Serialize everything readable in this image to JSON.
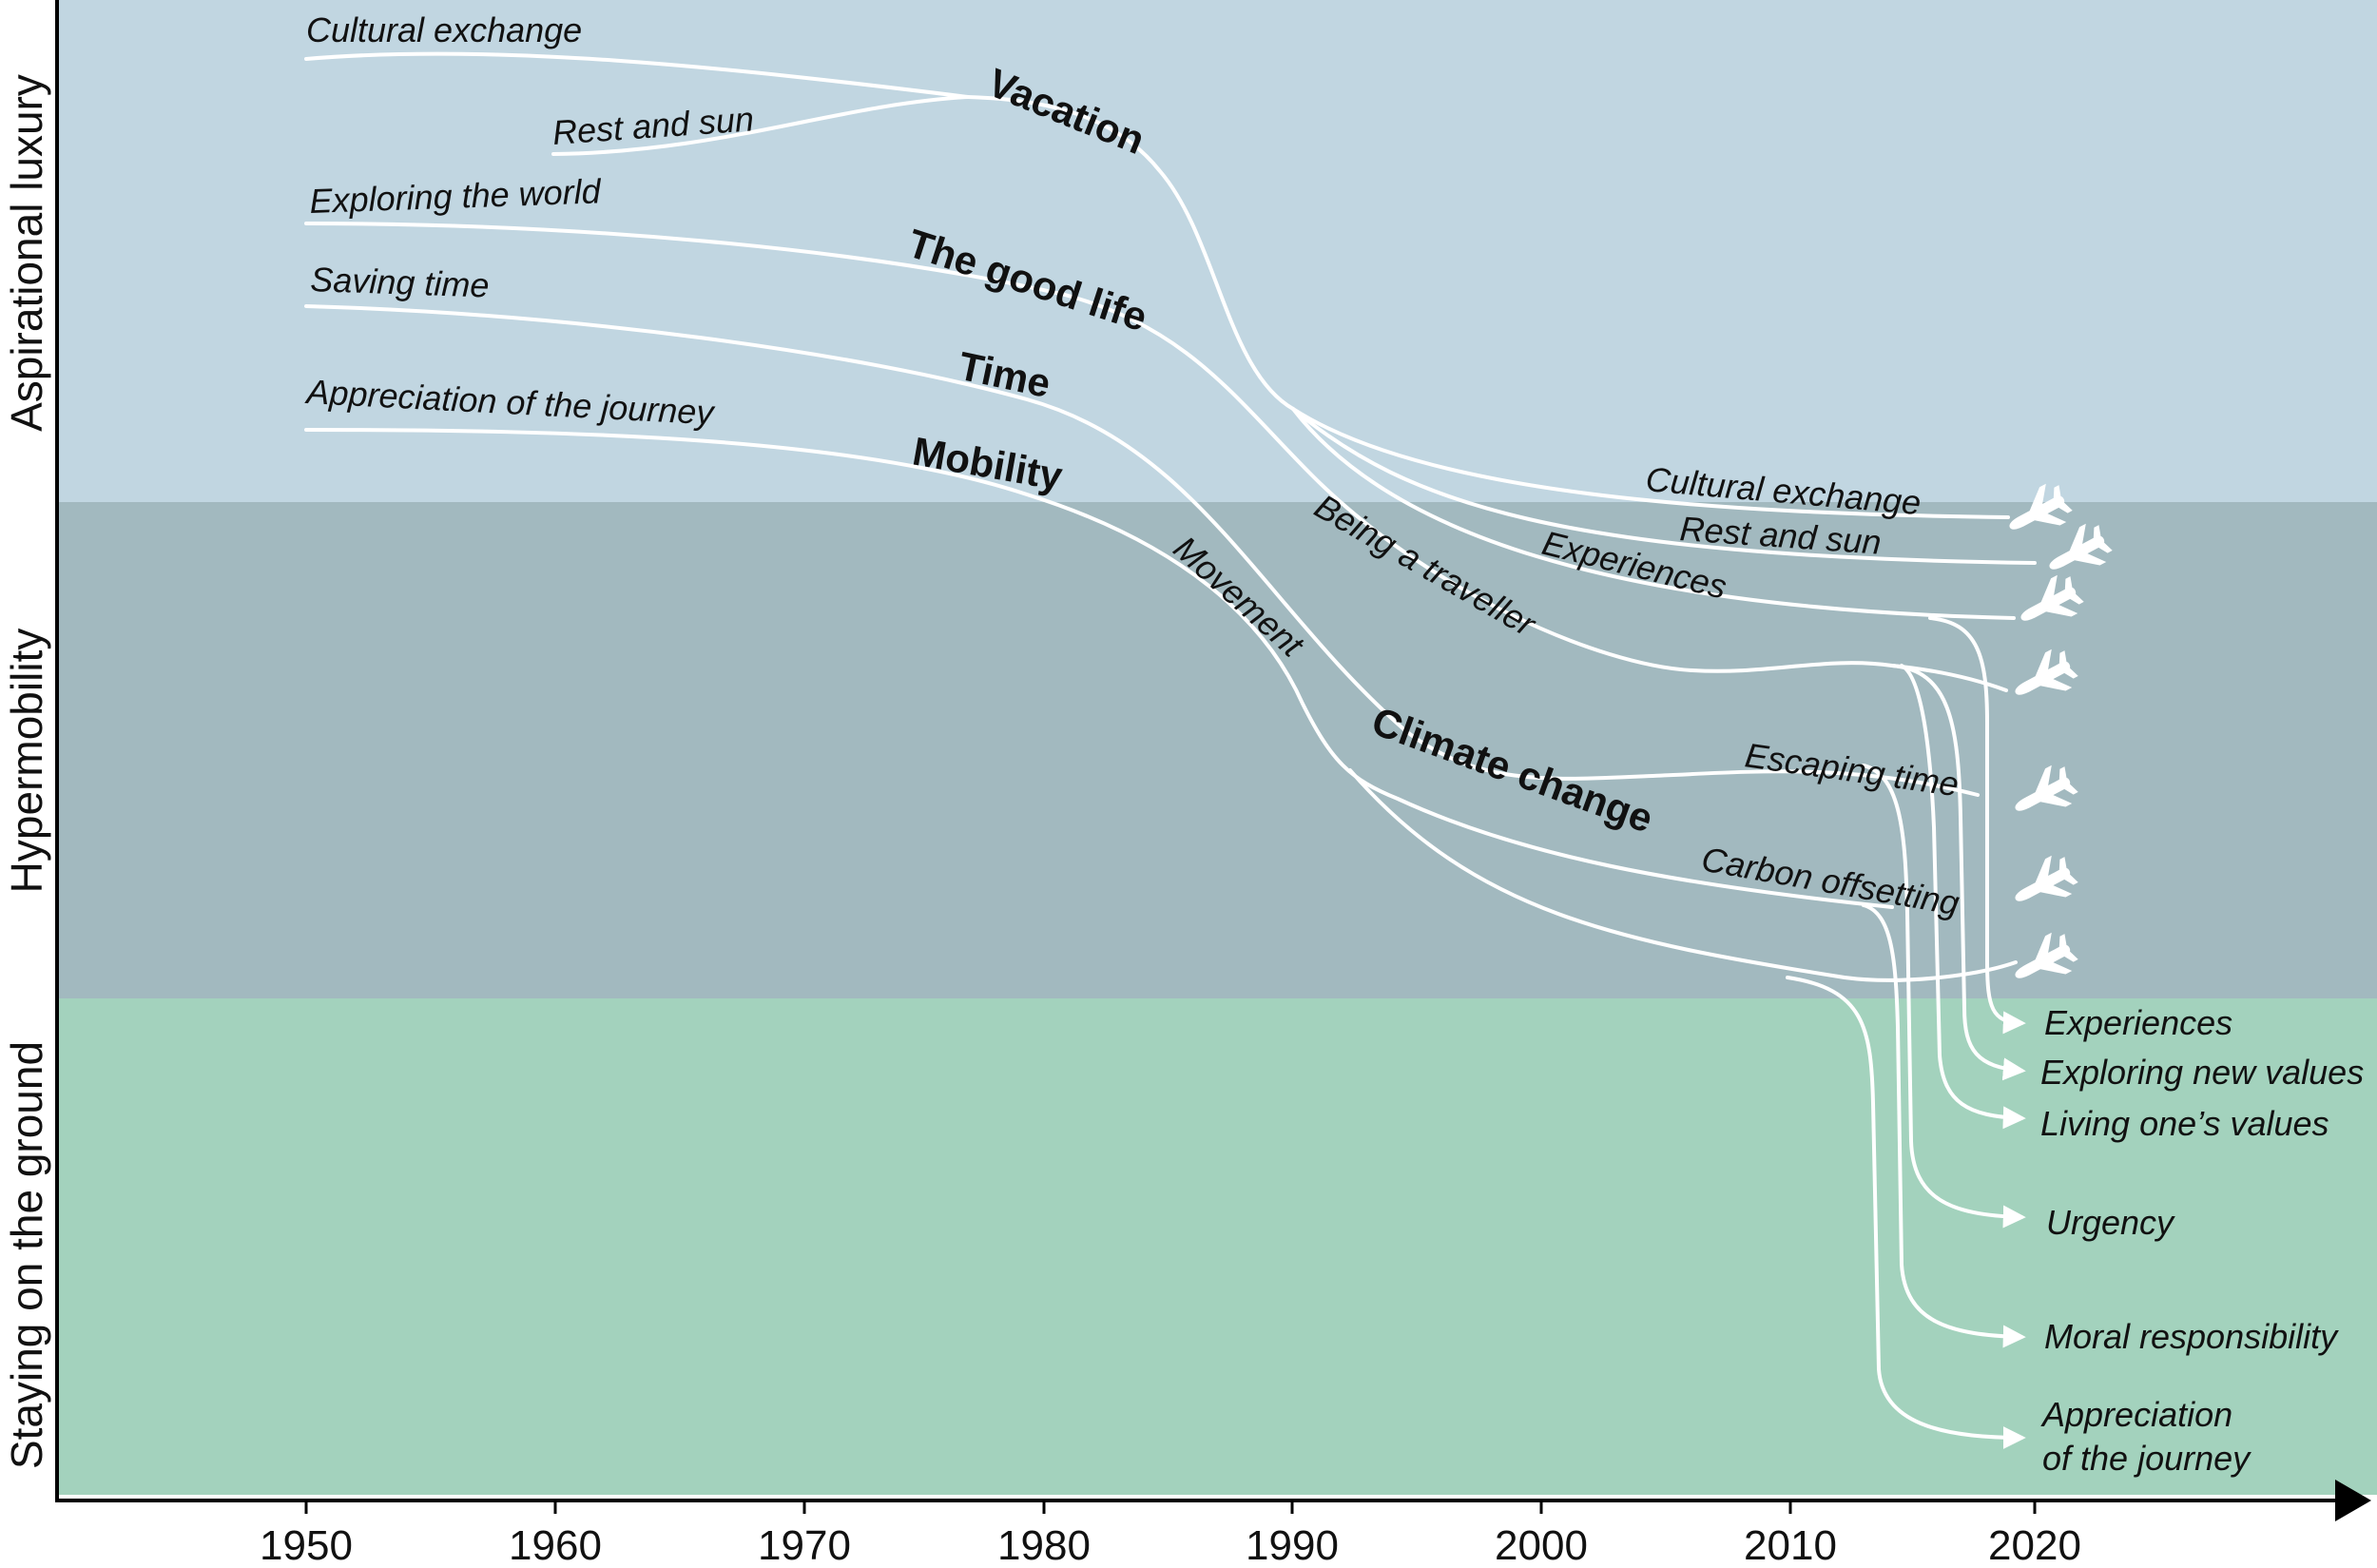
{
  "bands": [
    {
      "label": "Aspirational luxury",
      "color": "#c1d6e1"
    },
    {
      "label": "Hypermobility",
      "color": "#a2b9bf"
    },
    {
      "label": "Staying on the ground",
      "color": "#a3d2bd"
    }
  ],
  "axis": {
    "years": [
      "1950",
      "1960",
      "1970",
      "1980",
      "1990",
      "2000",
      "2010",
      "2020"
    ]
  },
  "themes": {
    "vacation": "Vacation",
    "good_life": "The good life",
    "time": "Time",
    "mobility": "Mobility",
    "climate_change": "Climate change"
  },
  "early_labels": {
    "cultural_exchange": "Cultural exchange",
    "rest_and_sun": "Rest and sun",
    "exploring_the_world": "Exploring the world",
    "saving_time": "Saving time",
    "appreciation_of_the_journey": "Appreciation of the journey"
  },
  "middle_labels": {
    "being_a_traveller": "Being a traveller",
    "movement": "Movement",
    "cultural_exchange": "Cultural exchange",
    "rest_and_sun": "Rest and sun",
    "experiences": "Experiences",
    "escaping_time": "Escaping time",
    "carbon_offsetting": "Carbon offsetting"
  },
  "outcomes": {
    "experiences": "Experiences",
    "exploring_new_values": "Exploring new values",
    "living_ones_values": "Living one’s values",
    "urgency": "Urgency",
    "moral_responsibility": "Moral responsibility",
    "appreciation_line1": "Appreciation",
    "appreciation_line2": "of the journey"
  },
  "icons": {
    "plane": "airplane-icon",
    "arrow": "arrowhead-icon"
  }
}
